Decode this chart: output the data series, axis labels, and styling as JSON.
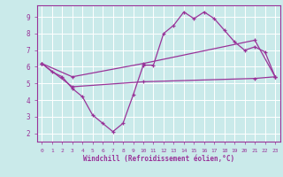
{
  "xlabel": "Windchill (Refroidissement éolien,°C)",
  "bg_color": "#caeaea",
  "grid_color": "#b0d8d8",
  "line_color": "#993399",
  "spine_color": "#993399",
  "xlim": [
    -0.5,
    23.5
  ],
  "ylim": [
    1.5,
    9.7
  ],
  "yticks": [
    2,
    3,
    4,
    5,
    6,
    7,
    8,
    9
  ],
  "xticks": [
    0,
    1,
    2,
    3,
    4,
    5,
    6,
    7,
    8,
    9,
    10,
    11,
    12,
    13,
    14,
    15,
    16,
    17,
    18,
    19,
    20,
    21,
    22,
    23
  ],
  "line1_x": [
    0,
    1,
    2,
    3,
    4,
    5,
    6,
    7,
    8,
    9,
    10,
    11,
    12,
    13,
    14,
    15,
    16,
    17,
    18,
    19,
    20,
    21,
    22,
    23
  ],
  "line1_y": [
    6.2,
    5.7,
    5.4,
    4.7,
    4.2,
    3.1,
    2.6,
    2.1,
    2.6,
    4.3,
    6.1,
    6.1,
    8.0,
    8.5,
    9.3,
    8.9,
    9.3,
    8.9,
    8.2,
    7.5,
    7.0,
    7.2,
    6.9,
    5.4
  ],
  "line2_x": [
    0,
    3,
    10,
    21,
    23
  ],
  "line2_y": [
    6.2,
    5.4,
    6.2,
    7.6,
    5.4
  ],
  "line3_x": [
    0,
    3,
    10,
    21,
    23
  ],
  "line3_y": [
    6.2,
    4.8,
    5.1,
    5.3,
    5.4
  ]
}
